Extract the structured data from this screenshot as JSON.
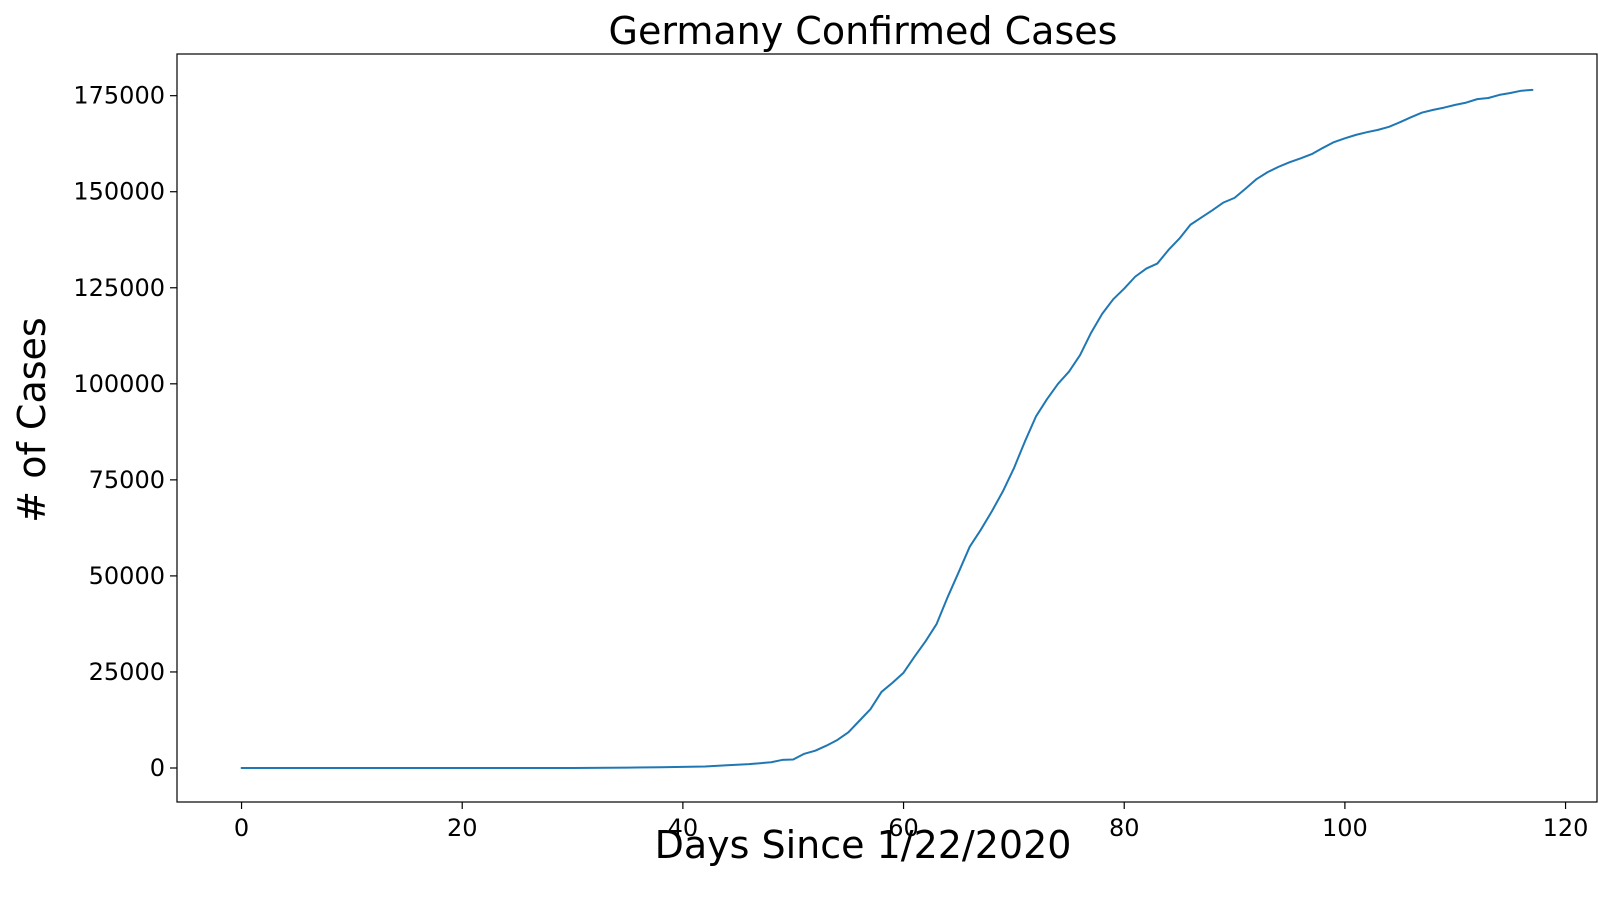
{
  "chart_data": {
    "type": "line",
    "title": "Germany Confirmed Cases",
    "xlabel": "Days Since 1/22/2020",
    "ylabel": "# of Cases",
    "xlim": [
      -5.85,
      122.85
    ],
    "ylim": [
      -8850,
      185850
    ],
    "x_ticks": [
      0,
      20,
      40,
      60,
      80,
      100,
      120
    ],
    "y_ticks": [
      0,
      25000,
      50000,
      75000,
      100000,
      125000,
      150000,
      175000
    ],
    "grid": false,
    "series": [
      {
        "color": "#1f77b4",
        "points": [
          [
            0,
            0
          ],
          [
            5,
            0
          ],
          [
            10,
            10
          ],
          [
            15,
            16
          ],
          [
            20,
            16
          ],
          [
            25,
            16
          ],
          [
            30,
            16
          ],
          [
            35,
            100
          ],
          [
            38,
            200
          ],
          [
            40,
            300
          ],
          [
            42,
            400
          ],
          [
            44,
            700
          ],
          [
            46,
            1000
          ],
          [
            48,
            1500
          ],
          [
            49,
            2100
          ],
          [
            50,
            2200
          ],
          [
            51,
            3700
          ],
          [
            52,
            4500
          ],
          [
            53,
            5800
          ],
          [
            54,
            7300
          ],
          [
            55,
            9300
          ],
          [
            56,
            12300
          ],
          [
            57,
            15300
          ],
          [
            58,
            19800
          ],
          [
            59,
            22200
          ],
          [
            60,
            24800
          ],
          [
            61,
            29000
          ],
          [
            62,
            33000
          ],
          [
            63,
            37500
          ],
          [
            64,
            44500
          ],
          [
            65,
            51000
          ],
          [
            66,
            57600
          ],
          [
            67,
            62000
          ],
          [
            68,
            66800
          ],
          [
            69,
            72000
          ],
          [
            70,
            78000
          ],
          [
            71,
            85000
          ],
          [
            72,
            91500
          ],
          [
            73,
            96000
          ],
          [
            74,
            100000
          ],
          [
            75,
            103200
          ],
          [
            76,
            107500
          ],
          [
            77,
            113300
          ],
          [
            78,
            118200
          ],
          [
            79,
            122000
          ],
          [
            80,
            124800
          ],
          [
            81,
            127900
          ],
          [
            82,
            130000
          ],
          [
            83,
            131300
          ],
          [
            84,
            134800
          ],
          [
            85,
            137800
          ],
          [
            86,
            141400
          ],
          [
            87,
            143300
          ],
          [
            88,
            145200
          ],
          [
            89,
            147200
          ],
          [
            90,
            148400
          ],
          [
            91,
            150800
          ],
          [
            92,
            153300
          ],
          [
            93,
            155100
          ],
          [
            94,
            156500
          ],
          [
            95,
            157700
          ],
          [
            96,
            158700
          ],
          [
            97,
            159800
          ],
          [
            98,
            161400
          ],
          [
            99,
            162900
          ],
          [
            100,
            163900
          ],
          [
            101,
            164800
          ],
          [
            102,
            165500
          ],
          [
            103,
            166100
          ],
          [
            104,
            166900
          ],
          [
            105,
            168100
          ],
          [
            106,
            169400
          ],
          [
            107,
            170600
          ],
          [
            108,
            171300
          ],
          [
            109,
            171900
          ],
          [
            110,
            172600
          ],
          [
            111,
            173200
          ],
          [
            112,
            174100
          ],
          [
            113,
            174400
          ],
          [
            114,
            175200
          ],
          [
            115,
            175700
          ],
          [
            116,
            176300
          ],
          [
            117,
            176500
          ]
        ]
      }
    ]
  }
}
